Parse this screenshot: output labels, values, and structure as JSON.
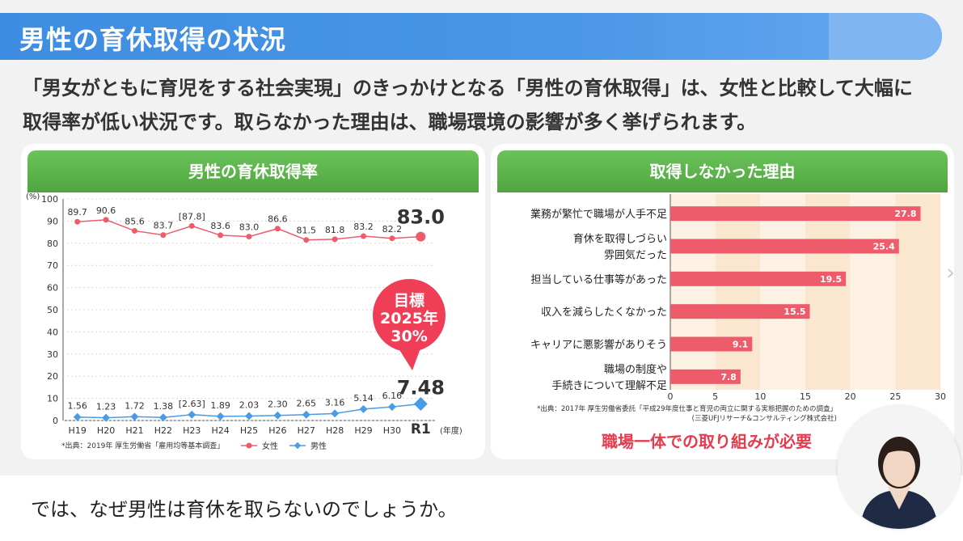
{
  "title": "男性の育休取得の状況",
  "intro": {
    "line1": "「男女がともに育児をする社会実現」のきっかけとなる「男性の育休取得」は、女性と比較して大幅に",
    "line2": "取得率が低い状況です。取らなかった理由は、職場環境の影響が多く挙げられます。"
  },
  "left_panel": {
    "heading": "男性の育休取得率",
    "goal": {
      "line1": "目標",
      "line2": "2025年",
      "line3": "30%"
    },
    "source": "*出典：2019年 厚生労働省「雇用均等基本調査」",
    "unit_y": "(%)",
    "unit_x": "(年度)",
    "legend": {
      "female": "女性",
      "male": "男性"
    }
  },
  "right_panel": {
    "heading": "取得しなかった理由",
    "source1": "*出典：2017年 厚生労働省委託「平成29年度仕事と育児の両立に関する実態把握のための調査」",
    "source2": "(三菱UFJリサーチ&コンサルティング株式会社)",
    "conclusion": "職場一体での取り組みが必要"
  },
  "bottom_text": "では、なぜ男性は育休を取らないのでしょうか。",
  "chart_data": [
    {
      "type": "line",
      "x": [
        "H19",
        "H20",
        "H21",
        "H22",
        "H23",
        "H24",
        "H25",
        "H26",
        "H27",
        "H28",
        "H29",
        "H30",
        "R1"
      ],
      "series": [
        {
          "name": "女性",
          "values": [
            89.7,
            90.6,
            85.6,
            83.7,
            87.8,
            83.6,
            83.0,
            86.6,
            81.5,
            81.8,
            83.2,
            82.2,
            83.0
          ],
          "labels": [
            "89.7",
            "90.6",
            "85.6",
            "83.7",
            "[87.8]",
            "83.6",
            "83.0",
            "86.6",
            "81.5",
            "81.8",
            "83.2",
            "82.2",
            "83.0"
          ],
          "color": "#ee5c6b"
        },
        {
          "name": "男性",
          "values": [
            1.56,
            1.23,
            1.72,
            1.38,
            2.63,
            1.89,
            2.03,
            2.3,
            2.65,
            3.16,
            5.14,
            6.16,
            7.48
          ],
          "labels": [
            "1.56",
            "1.23",
            "1.72",
            "1.38",
            "[2.63]",
            "1.89",
            "2.03",
            "2.30",
            "2.65",
            "3.16",
            "5.14",
            "6.16",
            "7.48"
          ],
          "color": "#4a9be6"
        }
      ],
      "ylim": [
        0,
        100
      ],
      "yticks": [
        0,
        10,
        20,
        30,
        40,
        50,
        60,
        70,
        80,
        90,
        100
      ],
      "ylabel": "(%)",
      "xlabel": "(年度)"
    },
    {
      "type": "bar",
      "orientation": "horizontal",
      "categories": [
        "業務が繁忙で職場が人手不足",
        "育休を取得しづらい雰囲気だった",
        "担当している仕事等があった",
        "収入を減らしたくなかった",
        "キャリアに悪影響がありそう",
        "職場の制度や手続きについて理解不足"
      ],
      "category_lines": [
        [
          "業務が繁忙で職場が人手不足"
        ],
        [
          "育休を取得しづらい",
          "雰囲気だった"
        ],
        [
          "担当している仕事等があった"
        ],
        [
          "収入を減らしたくなかった"
        ],
        [
          "キャリアに悪影響がありそう"
        ],
        [
          "職場の制度や",
          "手続きについて理解不足"
        ]
      ],
      "values": [
        27.8,
        25.4,
        19.5,
        15.5,
        9.1,
        7.8
      ],
      "xlim": [
        0,
        30
      ],
      "xticks": [
        0,
        5,
        10,
        15,
        20,
        25,
        30
      ],
      "color": "#ee5c6b"
    }
  ]
}
